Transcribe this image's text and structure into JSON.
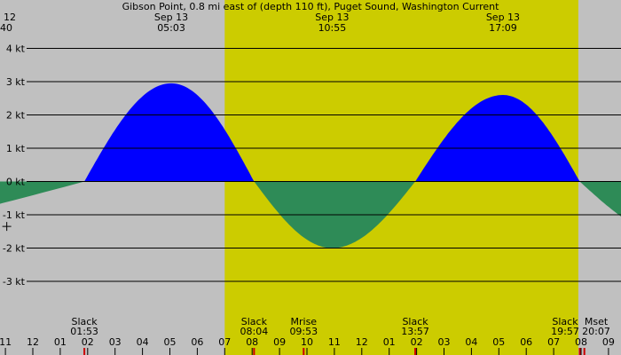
{
  "colors": {
    "night": "#c0c0c0",
    "day": "#cccc00",
    "flood": "#0000ff",
    "ebb": "#2e8b57",
    "grid": "#000000",
    "moon_marker": "#cc0000"
  },
  "chart_data": {
    "type": "area",
    "title": "Gibson Point, 0.8 mi east of (depth 110 ft), Puget Sound, Washington Current",
    "ylabel": "kt",
    "ylim": [
      -4.2,
      4.2
    ],
    "xlim_hours": [
      -13,
      33
    ],
    "y_ticks": [
      {
        "value": 4,
        "label": "4 kt"
      },
      {
        "value": 3,
        "label": "3 kt"
      },
      {
        "value": 2,
        "label": "2 kt"
      },
      {
        "value": 1,
        "label": "1 kt"
      },
      {
        "value": 0,
        "label": "0 kt"
      },
      {
        "value": -1,
        "label": "-1 kt"
      },
      {
        "value": -2,
        "label": "-2 kt"
      },
      {
        "value": -3,
        "label": "-3 kt"
      }
    ],
    "daylight": {
      "start": 7.0,
      "end": 19.9
    },
    "series": [
      {
        "x": [
          -13.0,
          1.88,
          5.05,
          8.07,
          10.92,
          13.95,
          17.15,
          19.95,
          23.5
        ],
        "values": [
          -2.1,
          0,
          2.95,
          0,
          -2.0,
          0,
          2.6,
          0,
          -1.7
        ]
      }
    ],
    "top_labels": [
      {
        "x": 0.0,
        "day": "12",
        "time": "40",
        "clip": "left"
      },
      {
        "x": 5.05,
        "day": "Sep 13",
        "time": "05:03"
      },
      {
        "x": 10.92,
        "day": "Sep 13",
        "time": "10:55"
      },
      {
        "x": 17.15,
        "day": "Sep 13",
        "time": "17:09"
      }
    ],
    "events": [
      {
        "x": 1.88,
        "name": "Slack",
        "time": "01:53"
      },
      {
        "x": 8.07,
        "name": "Slack",
        "time": "08:04"
      },
      {
        "x": 9.88,
        "name": "Mrise",
        "time": "09:53"
      },
      {
        "x": 13.95,
        "name": "Slack",
        "time": "13:57"
      },
      {
        "x": 19.95,
        "name": "Slack",
        "time": "19:57"
      },
      {
        "x": 20.12,
        "name": "Mset",
        "time": "20:07"
      }
    ],
    "x_ticks": [
      {
        "x": -1,
        "label": "11"
      },
      {
        "x": 0,
        "label": "12"
      },
      {
        "x": 1,
        "label": "01"
      },
      {
        "x": 2,
        "label": "02"
      },
      {
        "x": 3,
        "label": "03"
      },
      {
        "x": 4,
        "label": "04"
      },
      {
        "x": 5,
        "label": "05"
      },
      {
        "x": 6,
        "label": "06"
      },
      {
        "x": 7,
        "label": "07"
      },
      {
        "x": 8,
        "label": "08"
      },
      {
        "x": 9,
        "label": "09"
      },
      {
        "x": 10,
        "label": "10"
      },
      {
        "x": 11,
        "label": "11"
      },
      {
        "x": 12,
        "label": "12"
      },
      {
        "x": 13,
        "label": "01"
      },
      {
        "x": 14,
        "label": "02"
      },
      {
        "x": 15,
        "label": "03"
      },
      {
        "x": 16,
        "label": "04"
      },
      {
        "x": 17,
        "label": "05"
      },
      {
        "x": 18,
        "label": "06"
      },
      {
        "x": 19,
        "label": "07"
      },
      {
        "x": 20,
        "label": "08"
      },
      {
        "x": 21,
        "label": "09"
      }
    ],
    "cursor": {
      "x": -0.95,
      "y": -1.35
    }
  }
}
